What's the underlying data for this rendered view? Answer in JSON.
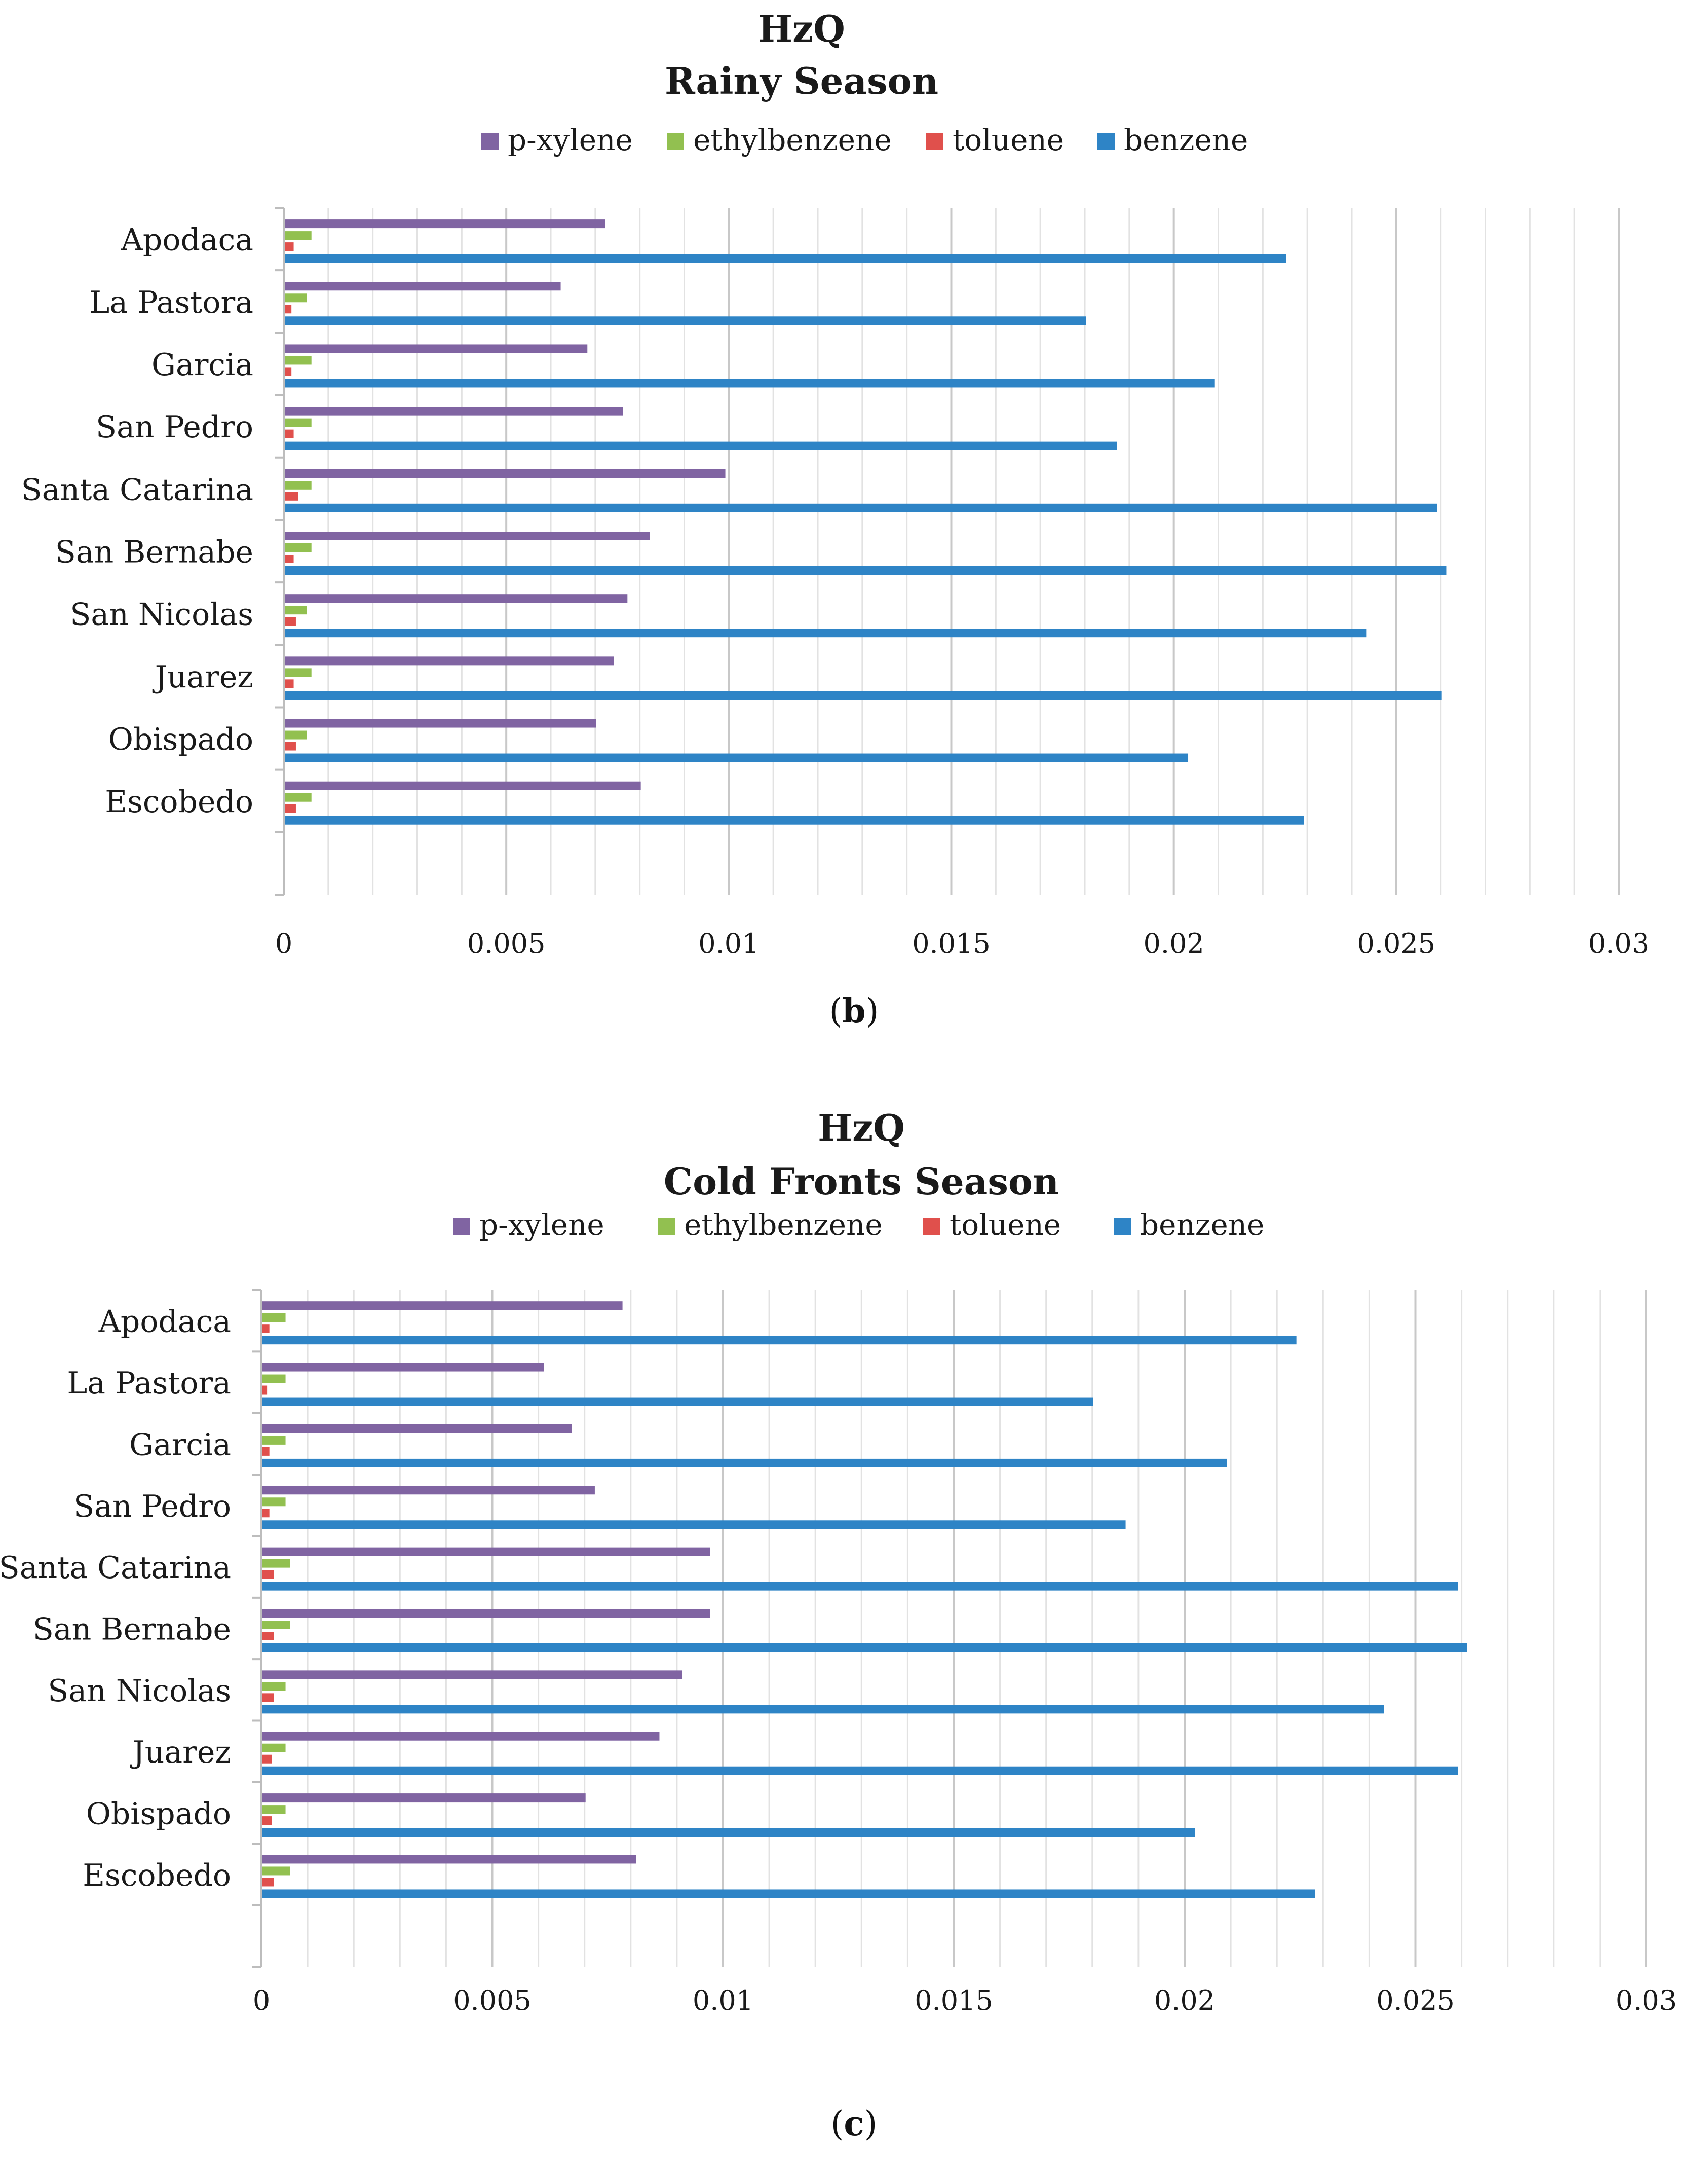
{
  "colors": {
    "p-xylene": "#8064a2",
    "ethylbenzene": "#92c050",
    "toluene": "#e0504c",
    "benzene": "#2e84c6",
    "grid_major": "#c8c8c8",
    "grid_minor": "#e2e2e2",
    "text": "#1a1a1a"
  },
  "panels": [
    {
      "open": "(",
      "letter": "b",
      "close": ")"
    },
    {
      "open": "(",
      "letter": "c",
      "close": ")"
    }
  ],
  "chart_data": [
    {
      "type": "bar",
      "orientation": "horizontal",
      "title": "HzQ",
      "subtitle": "Rainy Season",
      "legend_position": "top",
      "grid": true,
      "xlim": [
        0,
        0.03
      ],
      "x_ticks": [
        "0",
        "0.005",
        "0.01",
        "0.015",
        "0.02",
        "0.025",
        "0.03"
      ],
      "categories": [
        "Apodaca",
        "La Pastora",
        "Garcia",
        "San Pedro",
        "Santa Catarina",
        "San Bernabe",
        "San Nicolas",
        "Juarez",
        "Obispado",
        "Escobedo"
      ],
      "series": [
        {
          "name": "p-xylene",
          "values": [
            0.0072,
            0.0062,
            0.0068,
            0.0076,
            0.0099,
            0.0082,
            0.0077,
            0.0074,
            0.007,
            0.008
          ]
        },
        {
          "name": "ethylbenzene",
          "values": [
            0.0006,
            0.0005,
            0.0006,
            0.0006,
            0.0006,
            0.0006,
            0.0005,
            0.0006,
            0.0005,
            0.0006
          ]
        },
        {
          "name": "toluene",
          "values": [
            0.0002,
            0.00015,
            0.00015,
            0.0002,
            0.0003,
            0.0002,
            0.00025,
            0.0002,
            0.00025,
            0.00025
          ]
        },
        {
          "name": "benzene",
          "values": [
            0.0225,
            0.018,
            0.0209,
            0.0187,
            0.0259,
            0.0261,
            0.0243,
            0.026,
            0.0203,
            0.0229
          ]
        }
      ]
    },
    {
      "type": "bar",
      "orientation": "horizontal",
      "title": "HzQ",
      "subtitle": "Cold Fronts Season",
      "legend_position": "top",
      "grid": true,
      "xlim": [
        0,
        0.03
      ],
      "x_ticks": [
        "0",
        "0.005",
        "0.01",
        "0.015",
        "0.02",
        "0.025",
        "0.03"
      ],
      "categories": [
        "Apodaca",
        "La Pastora",
        "Garcia",
        "San Pedro",
        "Santa Catarina",
        "San Bernabe",
        "San Nicolas",
        "Juarez",
        "Obispado",
        "Escobedo"
      ],
      "series": [
        {
          "name": "p-xylene",
          "values": [
            0.0078,
            0.0061,
            0.0067,
            0.0072,
            0.0097,
            0.0097,
            0.0091,
            0.0086,
            0.007,
            0.0081
          ]
        },
        {
          "name": "ethylbenzene",
          "values": [
            0.0005,
            0.0005,
            0.0005,
            0.0005,
            0.0006,
            0.0006,
            0.0005,
            0.0005,
            0.0005,
            0.0006
          ]
        },
        {
          "name": "toluene",
          "values": [
            0.00015,
            0.0001,
            0.00015,
            0.00015,
            0.00025,
            0.00025,
            0.00025,
            0.0002,
            0.0002,
            0.00025
          ]
        },
        {
          "name": "benzene",
          "values": [
            0.0224,
            0.018,
            0.0209,
            0.0187,
            0.0259,
            0.0261,
            0.0243,
            0.0259,
            0.0202,
            0.0228
          ]
        }
      ]
    }
  ]
}
